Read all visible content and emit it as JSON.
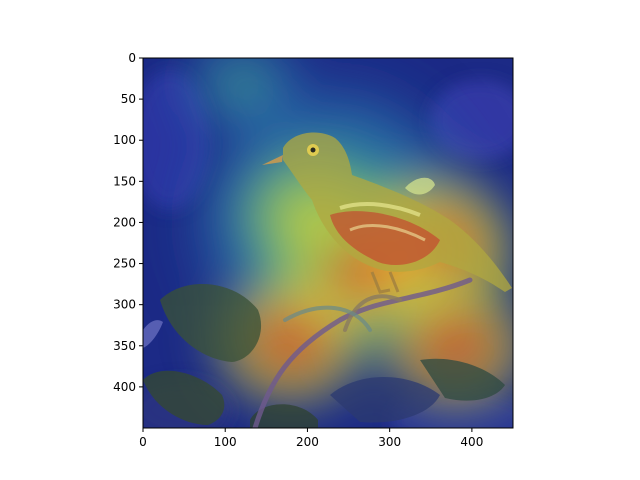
{
  "chart_data": {
    "type": "heatmap",
    "subtype": "image-with-attention-overlay",
    "image_description": "bird",
    "colormap": "jet",
    "x_ticks": [
      0,
      100,
      200,
      300,
      400
    ],
    "y_ticks": [
      0,
      50,
      100,
      150,
      200,
      250,
      300,
      350,
      400
    ],
    "xlim": [
      0,
      450
    ],
    "ylim": [
      450,
      0
    ],
    "hotspots": [
      {
        "x": 350,
        "y": 230,
        "intensity": 1.0
      },
      {
        "x": 260,
        "y": 255,
        "intensity": 0.95
      },
      {
        "x": 180,
        "y": 345,
        "intensity": 0.8
      },
      {
        "x": 380,
        "y": 350,
        "intensity": 0.75
      },
      {
        "x": 200,
        "y": 190,
        "intensity": 0.7
      },
      {
        "x": 120,
        "y": 30,
        "intensity": 0.45
      }
    ],
    "colors": {
      "background_blue": "#1a2a8c",
      "hot_red": "#d9261c",
      "warm_yellow": "#e8d84a",
      "mid_green": "#49c46a",
      "leaf_dark": "#2f3f2a",
      "bird_olive": "#9a9a3a"
    }
  }
}
